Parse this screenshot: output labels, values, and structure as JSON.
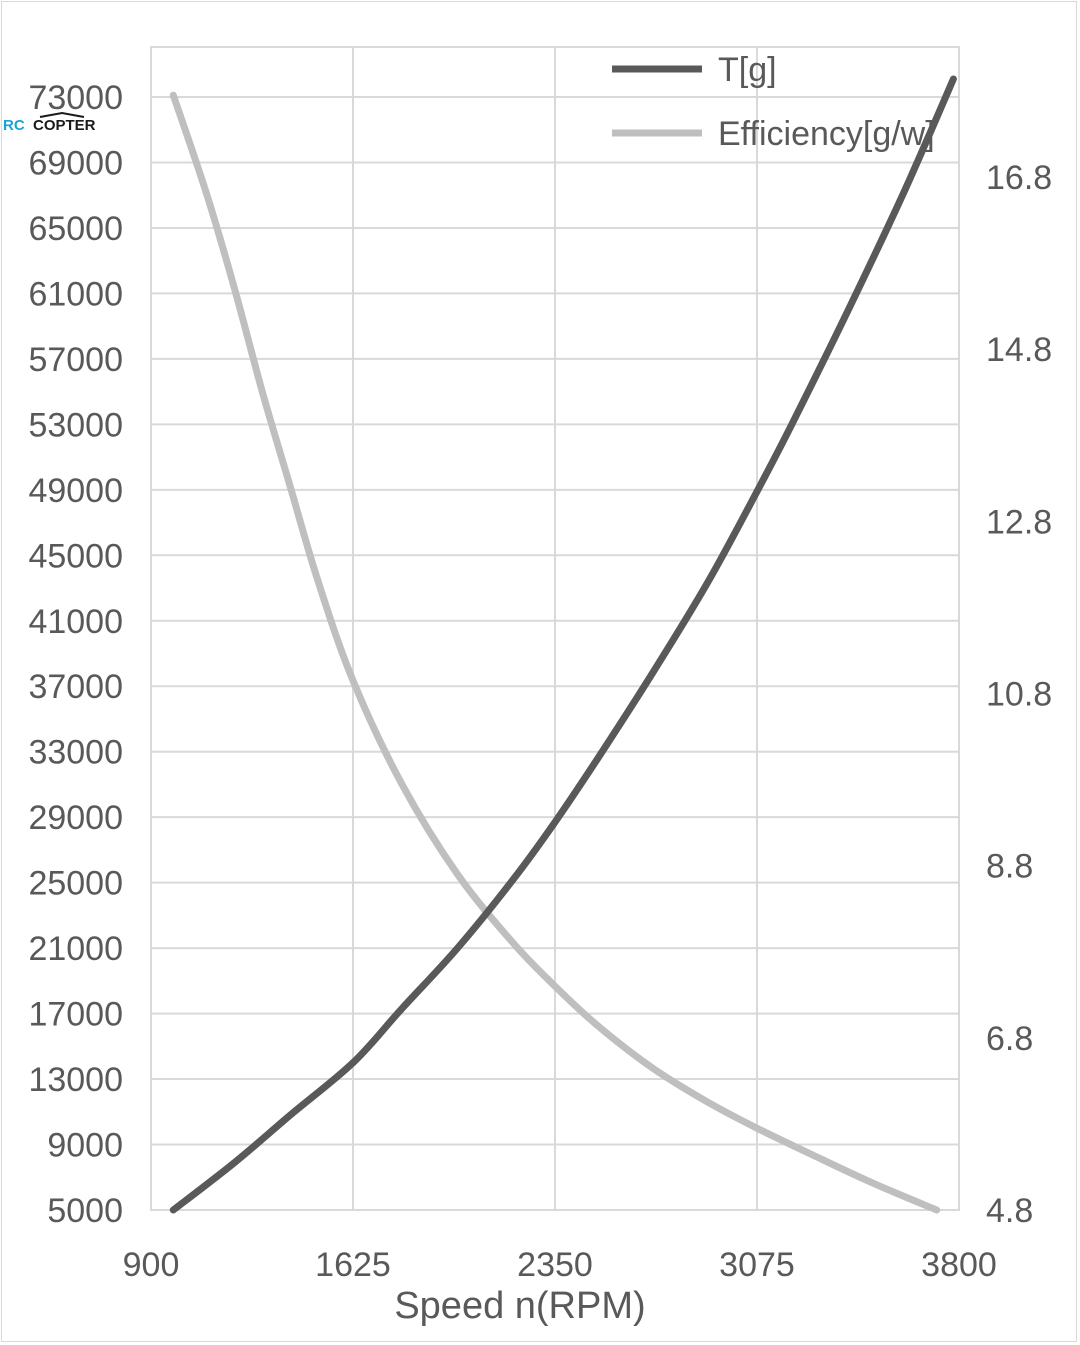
{
  "watermark": {
    "part1": "RC",
    "part2": "COPTER"
  },
  "chart_data": {
    "type": "line",
    "xlabel": "Speed n(RPM)",
    "x_ticks": [
      "900",
      "1625",
      "2350",
      "3075",
      "3800"
    ],
    "xlim": [
      900,
      3800
    ],
    "y_left_ticks": [
      "5000",
      "9000",
      "13000",
      "17000",
      "21000",
      "25000",
      "29000",
      "33000",
      "37000",
      "41000",
      "45000",
      "49000",
      "53000",
      "57000",
      "61000",
      "65000",
      "69000",
      "73000"
    ],
    "ylim_left": [
      5000,
      75000
    ],
    "y_right_ticks": [
      "4.8",
      "6.8",
      "8.8",
      "10.8",
      "12.8",
      "14.8",
      "16.8"
    ],
    "ylim_right": [
      4.8,
      17.8
    ],
    "grid": true,
    "legend_position": "top-right",
    "series": [
      {
        "name": "T[g]",
        "axis": "left",
        "color": "#595959",
        "x": [
          980,
          1200,
          1400,
          1625,
          1800,
          2000,
          2200,
          2350,
          2500,
          2700,
          2900,
          3075,
          3200,
          3400,
          3600,
          3780
        ],
        "y": [
          5000,
          7900,
          10800,
          14000,
          17300,
          21000,
          25200,
          28700,
          32500,
          37800,
          43400,
          48900,
          53000,
          59900,
          67100,
          74100
        ]
      },
      {
        "name": "Efficiency[g/w]",
        "axis": "right",
        "color": "#bfbfbf",
        "x": [
          980,
          1100,
          1200,
          1300,
          1400,
          1500,
          1625,
          1800,
          2000,
          2200,
          2350,
          2500,
          2700,
          2900,
          3075,
          3300,
          3500,
          3720
        ],
        "y": [
          17.75,
          16.6,
          15.5,
          14.3,
          13.2,
          12.1,
          10.95,
          9.75,
          8.7,
          7.9,
          7.4,
          6.95,
          6.45,
          6.05,
          5.75,
          5.4,
          5.1,
          4.8
        ]
      }
    ]
  }
}
